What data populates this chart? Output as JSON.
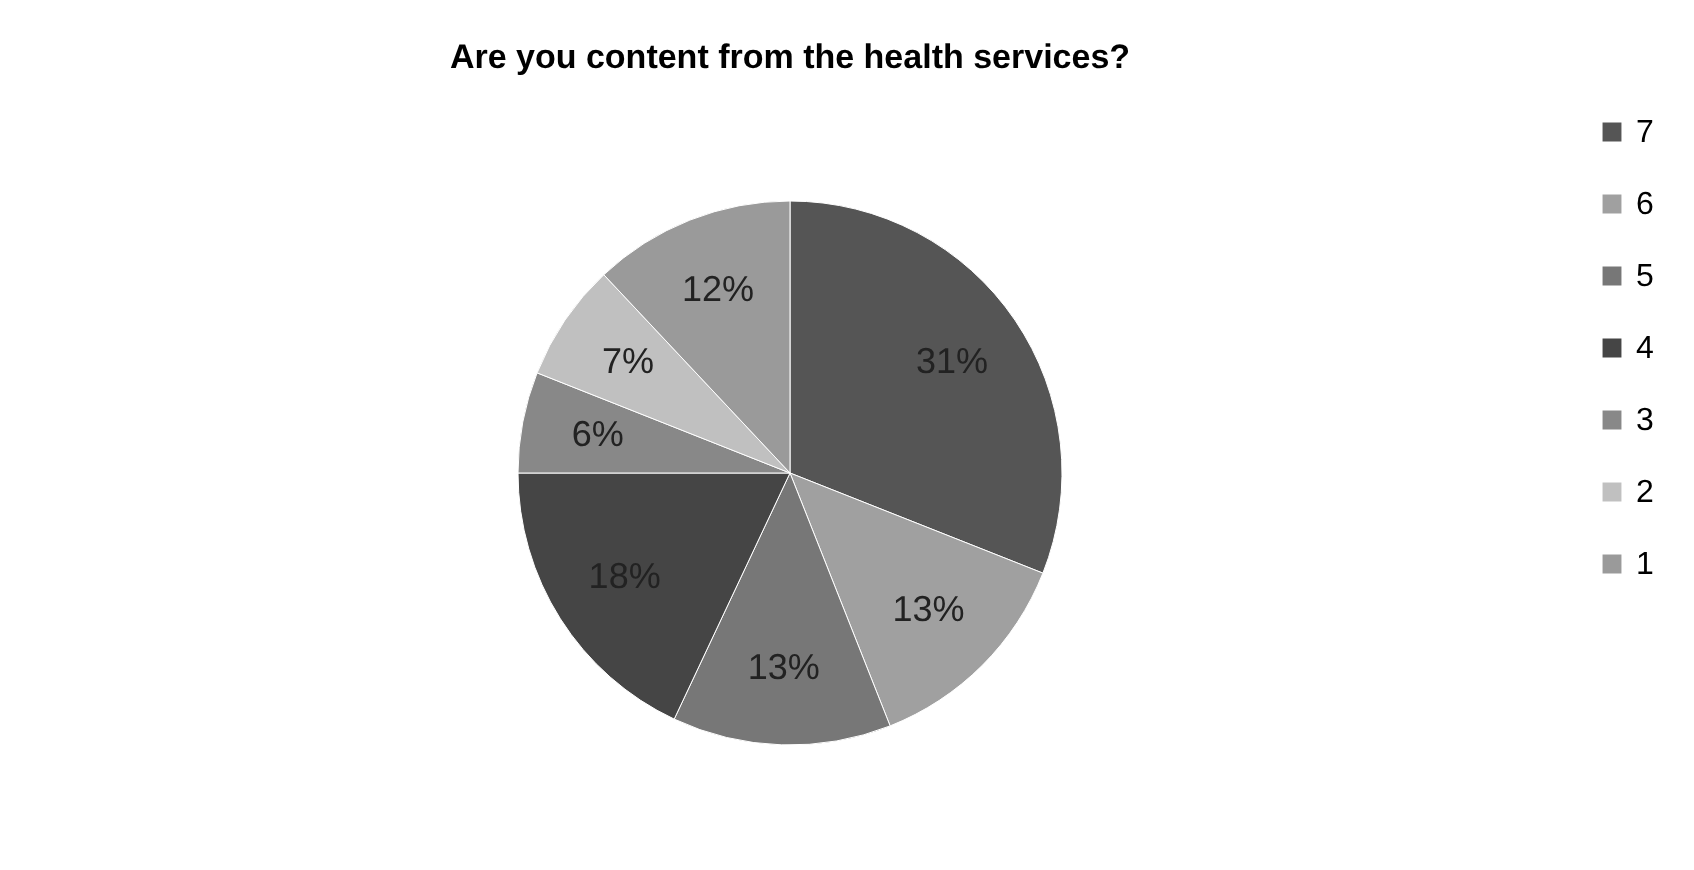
{
  "chart_data": {
    "type": "pie",
    "title": "Are you content from the health services?",
    "categories": [
      "7",
      "6",
      "5",
      "4",
      "3",
      "2",
      "1"
    ],
    "values": [
      31,
      13,
      13,
      18,
      6,
      7,
      12
    ],
    "value_labels": [
      "31%",
      "13%",
      "13%",
      "18%",
      "6%",
      "7%",
      "12%"
    ],
    "colors": [
      "#555555",
      "#a0a0a0",
      "#777777",
      "#454545",
      "#888888",
      "#c0c0c0",
      "#9a9a9a"
    ],
    "legend": "right"
  }
}
